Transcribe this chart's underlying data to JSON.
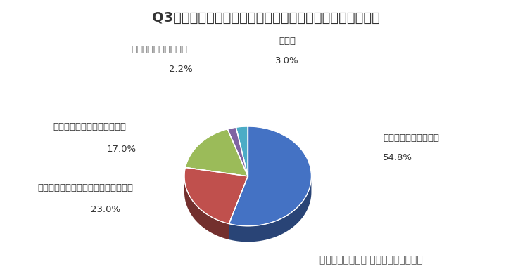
{
  "title": "Q3：（１）公共交通機関の理由が減った理由は何ですか？",
  "labels": [
    "感染リスクがあるから",
    "外出自粛・外出予定が無くなったから",
    "在宅勤務・休校になったから",
    "移動手段を変えたから",
    "その他"
  ],
  "pcts": [
    "54.8%",
    "23.0%",
    "17.0%",
    "2.2%",
    "3.0%"
  ],
  "values": [
    54.8,
    23.0,
    17.0,
    2.2,
    3.0
  ],
  "colors": [
    "#4472C4",
    "#C0504D",
    "#9BBB59",
    "#8064A2",
    "#4BACC6"
  ],
  "colors_dark": [
    "#2F5496",
    "#963634",
    "#76923C",
    "#5F497A",
    "#17375E"
  ],
  "footer": "おトクにマイカー 定額カルモくん調べ",
  "background_color": "#FFFFFF",
  "title_fontsize": 14,
  "label_fontsize": 9.5,
  "footer_fontsize": 10
}
